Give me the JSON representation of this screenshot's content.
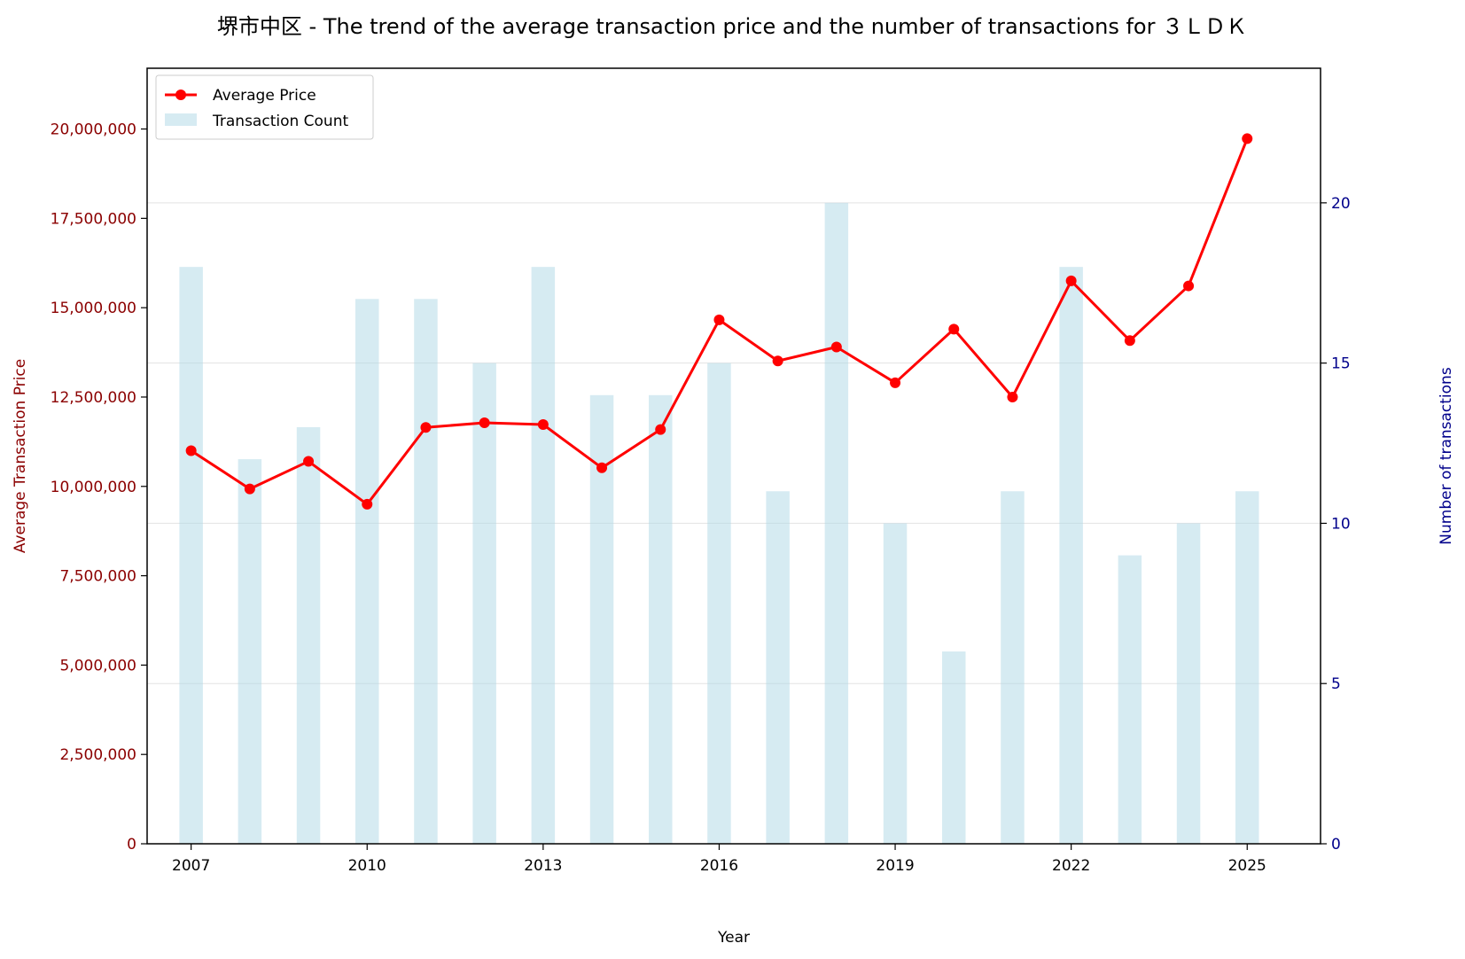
{
  "chart_data": {
    "type": "bar+line",
    "title": "堺市中区 - The trend of the average transaction price and the number of transactions for ３ＬＤＫ",
    "xlabel": "Year",
    "ylabel_left": "Average Transaction Price",
    "ylabel_right": "Number of transactions",
    "x": [
      2007,
      2008,
      2009,
      2010,
      2011,
      2012,
      2013,
      2014,
      2015,
      2016,
      2017,
      2018,
      2019,
      2020,
      2021,
      2022,
      2023,
      2024,
      2025
    ],
    "x_ticks": [
      "2007",
      "2010",
      "2013",
      "2016",
      "2019",
      "2022",
      "2025"
    ],
    "x_range": [
      2006.25,
      2026.25
    ],
    "y_left_ticks": [
      "0",
      "2,500,000",
      "5,000,000",
      "7,500,000",
      "10,000,000",
      "12,500,000",
      "15,000,000",
      "17,500,000",
      "20,000,000"
    ],
    "y_left_range": [
      0,
      21700000
    ],
    "y_right_ticks": [
      "0",
      "5",
      "10",
      "15",
      "20"
    ],
    "y_right_range": [
      0,
      24.2
    ],
    "grid": "horizontal, right axis",
    "legend_position": "top-left",
    "series": [
      {
        "name": "Average Price",
        "type": "line",
        "axis": "left",
        "color": "#ff0000",
        "values": [
          11000000,
          9930000,
          10700000,
          9500000,
          11650000,
          11780000,
          11730000,
          10520000,
          11590000,
          14660000,
          13510000,
          13900000,
          12900000,
          14400000,
          12500000,
          15750000,
          14080000,
          15610000,
          19730000
        ]
      },
      {
        "name": "Transaction Count",
        "type": "bar",
        "axis": "right",
        "color": "#add8e6",
        "values": [
          18,
          12,
          13,
          17,
          17,
          15,
          18,
          14,
          14,
          15,
          11,
          20,
          10,
          6,
          11,
          18,
          9,
          10,
          11
        ]
      }
    ]
  }
}
